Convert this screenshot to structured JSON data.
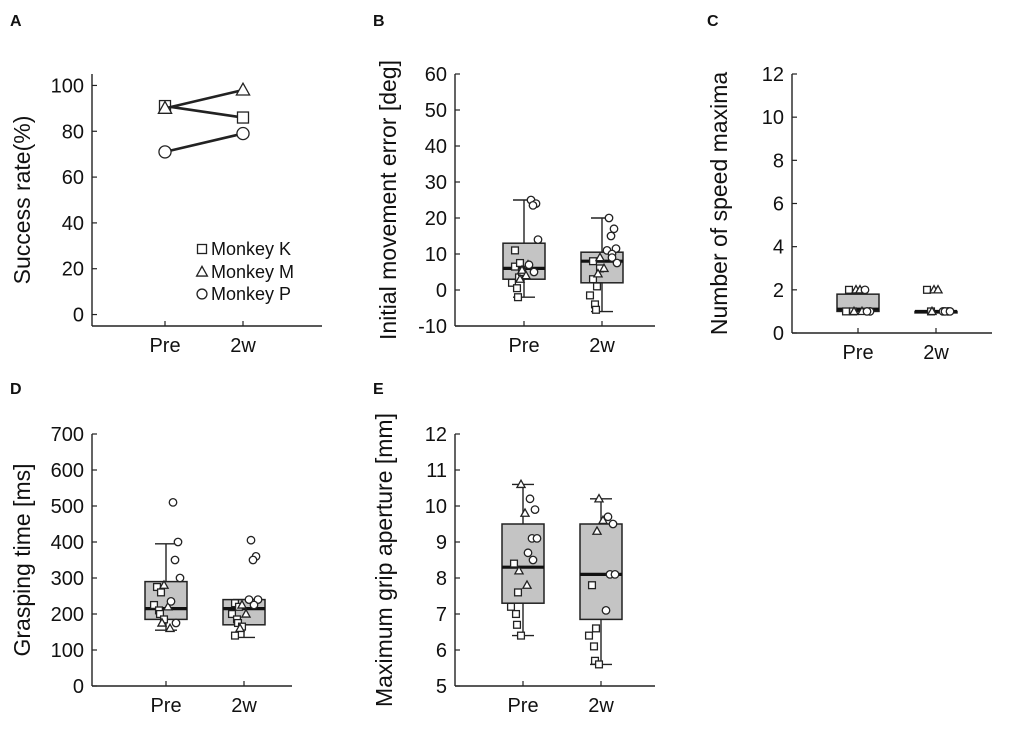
{
  "chart_data": [
    {
      "panel": "A",
      "type": "line",
      "title": "",
      "xlabel": "",
      "ylabel": "Success rate(%)",
      "categories": [
        "Pre",
        "2w"
      ],
      "ylim": [
        -5,
        105
      ],
      "yticks": [
        0,
        20,
        40,
        60,
        80,
        100
      ],
      "legend_position": "bottom-right",
      "series": [
        {
          "name": "Monkey K",
          "marker": "square",
          "values": [
            91,
            86
          ]
        },
        {
          "name": "Monkey M",
          "marker": "triangle",
          "values": [
            90,
            98
          ]
        },
        {
          "name": "Monkey P",
          "marker": "circle",
          "values": [
            71,
            79
          ]
        }
      ]
    },
    {
      "panel": "B",
      "type": "box",
      "title": "",
      "xlabel": "",
      "ylabel": "Initial movement error [deg]",
      "categories": [
        "Pre",
        "2w"
      ],
      "ylim": [
        -10,
        60
      ],
      "yticks": [
        -10,
        0,
        10,
        20,
        30,
        40,
        50,
        60
      ],
      "boxes": [
        {
          "category": "Pre",
          "whisker_low": -2,
          "q1": 3,
          "median": 6,
          "q3": 13,
          "whisker_high": 25
        },
        {
          "category": "2w",
          "whisker_low": -6,
          "q1": 2,
          "median": 8,
          "q3": 10.5,
          "whisker_high": 20
        }
      ],
      "points": [
        {
          "category": "Pre",
          "monkey": "K",
          "values": [
            11,
            3.5,
            2,
            0.5,
            -2,
            5,
            6.5,
            7.5
          ]
        },
        {
          "category": "Pre",
          "monkey": "M",
          "values": [
            5.5,
            4,
            3,
            7
          ]
        },
        {
          "category": "Pre",
          "monkey": "P",
          "values": [
            25,
            24,
            23.5,
            14,
            7,
            5
          ]
        },
        {
          "category": "2w",
          "monkey": "K",
          "values": [
            3,
            1,
            -1.5,
            -4,
            -5.5,
            6,
            8
          ]
        },
        {
          "category": "2w",
          "monkey": "M",
          "values": [
            9,
            6,
            4.5
          ]
        },
        {
          "category": "2w",
          "monkey": "P",
          "values": [
            20,
            17,
            15,
            11.5,
            11,
            10,
            9,
            7.5
          ]
        }
      ]
    },
    {
      "panel": "C",
      "type": "box",
      "title": "",
      "xlabel": "",
      "ylabel": "Number of speed maxima",
      "categories": [
        "Pre",
        "2w"
      ],
      "ylim": [
        0,
        12
      ],
      "yticks": [
        0,
        2,
        4,
        6,
        8,
        10,
        12
      ],
      "boxes": [
        {
          "category": "Pre",
          "whisker_low": 1,
          "q1": 1,
          "median": 1.1,
          "q3": 1.8,
          "whisker_high": 2
        },
        {
          "category": "2w",
          "whisker_low": 1,
          "q1": 1,
          "median": 1,
          "q3": 1,
          "whisker_high": 1
        }
      ],
      "points": [
        {
          "category": "Pre",
          "monkey": "K",
          "values": [
            2,
            1,
            1
          ]
        },
        {
          "category": "Pre",
          "monkey": "M",
          "values": [
            2,
            2,
            1,
            1
          ]
        },
        {
          "category": "Pre",
          "monkey": "P",
          "values": [
            2,
            1,
            1
          ]
        },
        {
          "category": "2w",
          "monkey": "K",
          "values": [
            2,
            1
          ]
        },
        {
          "category": "2w",
          "monkey": "M",
          "values": [
            2,
            2,
            1
          ]
        },
        {
          "category": "2w",
          "monkey": "P",
          "values": [
            1,
            1,
            1,
            1
          ]
        }
      ]
    },
    {
      "panel": "D",
      "type": "box",
      "title": "",
      "xlabel": "",
      "ylabel": "Grasping time [ms]",
      "categories": [
        "Pre",
        "2w"
      ],
      "ylim": [
        0,
        700
      ],
      "yticks": [
        0,
        100,
        200,
        300,
        400,
        500,
        600,
        700
      ],
      "boxes": [
        {
          "category": "Pre",
          "whisker_low": 155,
          "q1": 185,
          "median": 215,
          "q3": 290,
          "whisker_high": 395
        },
        {
          "category": "2w",
          "whisker_low": 135,
          "q1": 170,
          "median": 215,
          "q3": 240,
          "whisker_high": 240
        }
      ],
      "points": [
        {
          "category": "Pre",
          "monkey": "K",
          "values": [
            275,
            260,
            225,
            210,
            200,
            185
          ]
        },
        {
          "category": "Pre",
          "monkey": "M",
          "values": [
            280,
            220,
            175,
            160
          ]
        },
        {
          "category": "Pre",
          "monkey": "P",
          "values": [
            510,
            400,
            350,
            300,
            235,
            175
          ]
        },
        {
          "category": "2w",
          "monkey": "K",
          "values": [
            230,
            220,
            200,
            185,
            175,
            165,
            140
          ]
        },
        {
          "category": "2w",
          "monkey": "M",
          "values": [
            225,
            200,
            160
          ]
        },
        {
          "category": "2w",
          "monkey": "P",
          "values": [
            405,
            360,
            350,
            240,
            240,
            225
          ]
        }
      ]
    },
    {
      "panel": "E",
      "type": "box",
      "title": "",
      "xlabel": "",
      "ylabel": "Maximum grip aperture [mm]",
      "categories": [
        "Pre",
        "2w"
      ],
      "ylim": [
        5,
        12
      ],
      "yticks": [
        5,
        6,
        7,
        8,
        9,
        10,
        11,
        12
      ],
      "boxes": [
        {
          "category": "Pre",
          "whisker_low": 6.4,
          "q1": 7.3,
          "median": 8.3,
          "q3": 9.5,
          "whisker_high": 10.6
        },
        {
          "category": "2w",
          "whisker_low": 5.6,
          "q1": 6.85,
          "median": 8.1,
          "q3": 9.5,
          "whisker_high": 10.2
        }
      ],
      "points": [
        {
          "category": "Pre",
          "monkey": "K",
          "values": [
            8.4,
            7.6,
            7.2,
            7.0,
            6.7,
            6.4
          ]
        },
        {
          "category": "Pre",
          "monkey": "M",
          "values": [
            10.6,
            9.8,
            8.2,
            7.8
          ]
        },
        {
          "category": "Pre",
          "monkey": "P",
          "values": [
            10.2,
            9.9,
            9.1,
            9.1,
            8.7,
            8.5
          ]
        },
        {
          "category": "2w",
          "monkey": "K",
          "values": [
            7.8,
            6.6,
            6.4,
            6.1,
            5.7,
            5.6
          ]
        },
        {
          "category": "2w",
          "monkey": "M",
          "values": [
            10.2,
            9.6,
            9.3
          ]
        },
        {
          "category": "2w",
          "monkey": "P",
          "values": [
            9.7,
            9.5,
            8.1,
            8.1,
            7.1
          ]
        }
      ]
    }
  ]
}
